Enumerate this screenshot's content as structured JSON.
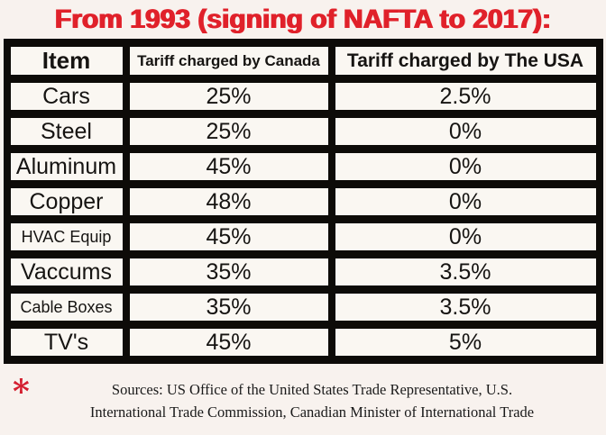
{
  "title": "From 1993 (signing of NAFTA to 2017):",
  "chart_data": {
    "type": "table",
    "title": "From 1993 (signing of NAFTA to 2017):",
    "columns": [
      "Item",
      "Tariff charged by Canada",
      "Tariff charged by The USA"
    ],
    "rows": [
      [
        "Cars",
        "25%",
        "2.5%"
      ],
      [
        "Steel",
        "25%",
        "0%"
      ],
      [
        "Aluminum",
        "45%",
        "0%"
      ],
      [
        "Copper",
        "48%",
        "0%"
      ],
      [
        "HVAC Equip",
        "45%",
        "0%"
      ],
      [
        "Vaccums",
        "35%",
        "3.5%"
      ],
      [
        "Cable Boxes",
        "35%",
        "3.5%"
      ],
      [
        "TV's",
        "45%",
        "5%"
      ]
    ],
    "notes": "Sources: US Office of the United States Trade Representative, U.S. International Trade Commission, Canadian Minister of International Trade"
  },
  "footer": {
    "asterisk": "*",
    "source_lines": [
      "Sources: US Office of the United States Trade Representative, U.S.",
      "International Trade Commission, Canadian Minister of International Trade"
    ]
  },
  "colors": {
    "accent_red": "#e0212a",
    "table_black": "#0d0b08",
    "cell_white": "#faf7f2",
    "page_background": "#f8f2ee"
  }
}
